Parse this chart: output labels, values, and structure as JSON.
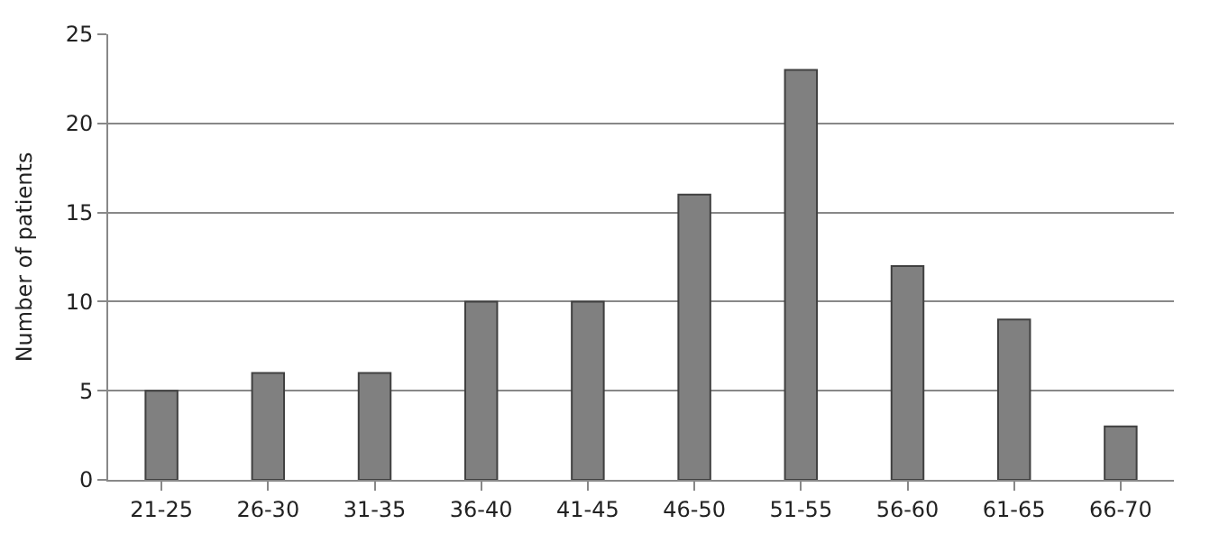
{
  "chart_data": {
    "type": "bar",
    "ylabel": "Number of patients",
    "categories": [
      "21-25",
      "26-30",
      "31-35",
      "36-40",
      "41-45",
      "46-50",
      "51-55",
      "56-60",
      "61-65",
      "66-70"
    ],
    "values": [
      5,
      6,
      6,
      10,
      10,
      16,
      23,
      12,
      9,
      3
    ],
    "color": "#808080",
    "ylim": [
      0,
      25
    ],
    "yticks": [
      0,
      5,
      10,
      15,
      20,
      25
    ],
    "grid": "y"
  }
}
